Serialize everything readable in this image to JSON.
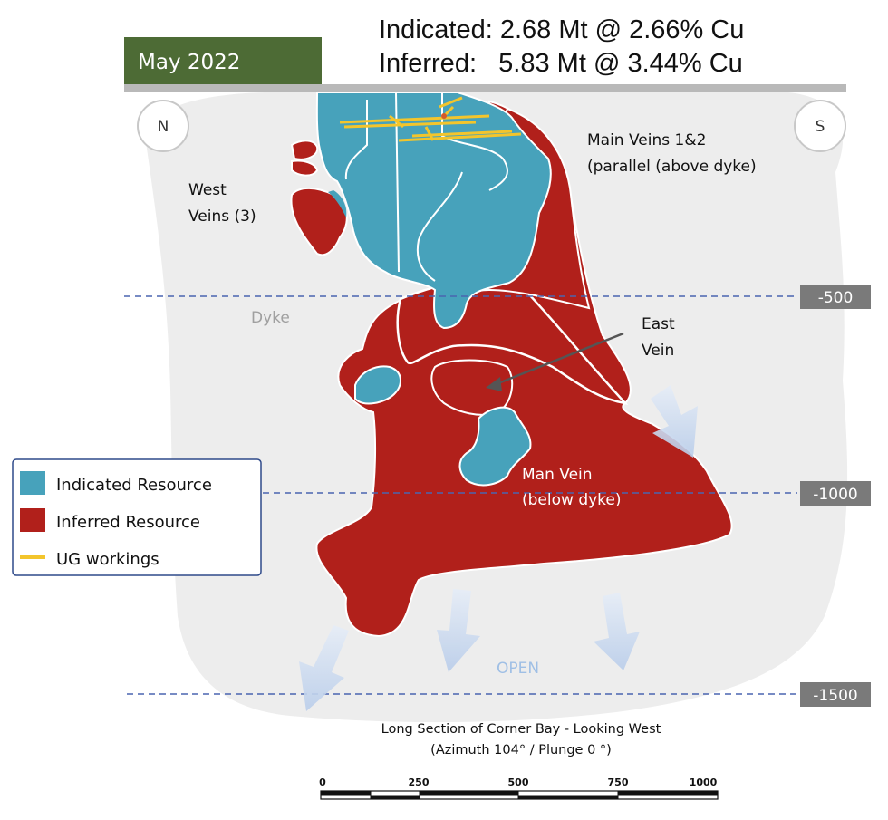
{
  "date_badge": "May 2022",
  "summary": {
    "indicated": "Indicated: 2.68 Mt @ 2.66% Cu",
    "inferred": "Inferred:   5.83 Mt @ 3.44% Cu"
  },
  "compass": {
    "north": "N",
    "south": "S"
  },
  "labels": {
    "west_veins_1": "West",
    "west_veins_2": "Veins (3)",
    "main_veins_1": "Main Veins 1&2",
    "main_veins_2": "(parallel (above dyke)",
    "dyke": "Dyke",
    "east_vein_1": "East",
    "east_vein_2": "Vein",
    "man_vein_1": "Man Vein",
    "man_vein_2": "(below dyke)",
    "open": "OPEN"
  },
  "depth_levels": [
    "-500",
    "-1000",
    "-1500"
  ],
  "legend": [
    {
      "label": "Indicated Resource",
      "color": "#47a2bb"
    },
    {
      "label": "Inferred Resource",
      "color": "#b1201b"
    },
    {
      "label": "UG workings",
      "color": "#f3c52c"
    }
  ],
  "caption": {
    "line1": "Long Section of Corner Bay - Looking West",
    "line2": "(Azimuth 104° / Plunge 0 °)"
  },
  "scale_bar": {
    "ticks": [
      "0",
      "250",
      "500",
      "750",
      "1000"
    ]
  },
  "colors": {
    "indicated": "#47a2bb",
    "inferred": "#b1201b",
    "ug_workings": "#f3c52c",
    "badge_green": "#4d6b35",
    "depth_box": "#7a7a7a",
    "dash_line": "#4a65b0",
    "arrow_fill": "#c5d6ee"
  }
}
